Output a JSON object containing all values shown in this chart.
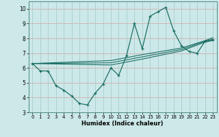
{
  "xlabel": "Humidex (Indice chaleur)",
  "xlim": [
    -0.5,
    23.5
  ],
  "ylim": [
    3,
    10.5
  ],
  "xticks": [
    0,
    1,
    2,
    3,
    4,
    5,
    6,
    7,
    8,
    9,
    10,
    11,
    12,
    13,
    14,
    15,
    16,
    17,
    18,
    19,
    20,
    21,
    22,
    23
  ],
  "yticks": [
    3,
    4,
    5,
    6,
    7,
    8,
    9,
    10
  ],
  "bg_color": "#cce8e8",
  "grid_color_h": "#d4aaaa",
  "grid_color_v": "#aacccc",
  "line_color": "#1a6e64",
  "main_line": {
    "x": [
      0,
      1,
      2,
      3,
      4,
      5,
      6,
      7,
      8,
      9,
      10,
      11,
      12,
      13,
      14,
      15,
      16,
      17,
      18,
      19,
      20,
      21,
      22,
      23
    ],
    "y": [
      6.3,
      5.8,
      5.8,
      4.8,
      4.5,
      4.1,
      3.6,
      3.5,
      4.3,
      4.9,
      6.0,
      5.5,
      6.85,
      9.0,
      7.3,
      9.5,
      9.8,
      10.1,
      8.5,
      7.5,
      7.1,
      7.0,
      7.8,
      7.9
    ]
  },
  "trend_lines": [
    {
      "x": [
        0,
        10,
        14,
        19,
        22,
        23
      ],
      "y": [
        6.3,
        6.2,
        6.6,
        7.15,
        7.75,
        7.85
      ]
    },
    {
      "x": [
        0,
        10,
        14,
        19,
        22,
        23
      ],
      "y": [
        6.3,
        6.35,
        6.75,
        7.25,
        7.8,
        7.95
      ]
    },
    {
      "x": [
        0,
        10,
        14,
        19,
        22,
        23
      ],
      "y": [
        6.3,
        6.5,
        6.9,
        7.35,
        7.85,
        8.05
      ]
    }
  ]
}
